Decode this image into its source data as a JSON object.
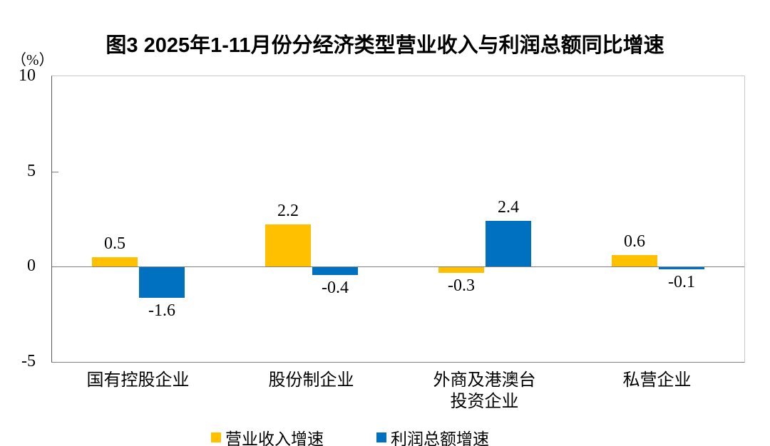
{
  "title": "图3 2025年1-11月份分经济类型营业收入与利润总额同比增速",
  "unit_label": "（%）",
  "chart_data": {
    "type": "bar",
    "title": "图3 2025年1-11月份分经济类型营业收入与利润总额同比增速",
    "ylabel": "（%）",
    "xlabel": "",
    "categories": [
      "国有控股企业",
      "股份制企业",
      "外商及港澳台\n投资企业",
      "私营企业"
    ],
    "series": [
      {
        "name": "营业收入增速",
        "color": "#FFC000",
        "values": [
          0.5,
          2.2,
          -0.3,
          0.6
        ]
      },
      {
        "name": "利润总额增速",
        "color": "#0070C0",
        "values": [
          -1.6,
          -0.4,
          2.4,
          -0.1
        ]
      }
    ],
    "data_labels": [
      [
        "0.5",
        "2.2",
        "-0.3",
        "0.6"
      ],
      [
        "-1.6",
        "-0.4",
        "2.4",
        "-0.1"
      ]
    ],
    "ylim": [
      -5,
      10
    ],
    "yticks": [
      10,
      5,
      0,
      -5
    ],
    "grid": "zero-line-only",
    "legend_position": "bottom"
  }
}
